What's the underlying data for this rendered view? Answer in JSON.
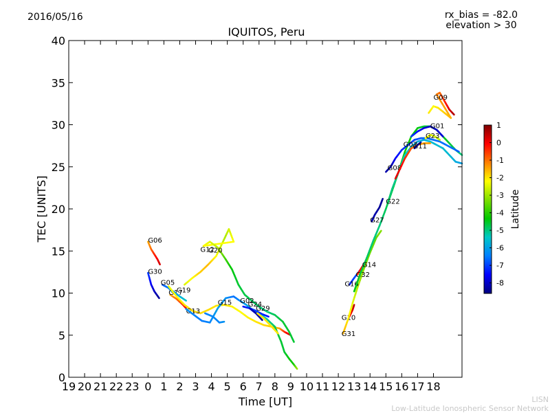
{
  "header": {
    "date": "2016/05/16",
    "title": "IQUITOS, Peru",
    "rx_bias": "rx_bias = -82.0",
    "elevation": "elevation > 30"
  },
  "credits": {
    "line1": "LISN",
    "line2": "Low-Latitude Ionospheric Sensor Network"
  },
  "chart_data": {
    "type": "scatter",
    "title": "IQUITOS, Peru",
    "xlabel": "Time [UT]",
    "ylabel": "TEC [UNITS]",
    "xlim": [
      19,
      43.8
    ],
    "ylim": [
      0,
      40
    ],
    "x_tick_values": [
      19,
      20,
      21,
      22,
      23,
      24,
      25,
      26,
      27,
      28,
      29,
      30,
      31,
      32,
      33,
      34,
      35,
      36,
      37,
      38,
      39,
      40,
      41,
      42
    ],
    "x_tick_labels": [
      "19",
      "20",
      "21",
      "22",
      "23",
      "0",
      "1",
      "2",
      "3",
      "4",
      "5",
      "6",
      "7",
      "8",
      "9",
      "10",
      "11",
      "12",
      "13",
      "14",
      "15",
      "16",
      "17",
      "18"
    ],
    "y_ticks": [
      0,
      5,
      10,
      15,
      20,
      25,
      30,
      35,
      40
    ],
    "colorbar": {
      "label": "Latitude",
      "min": -8.6,
      "max": 1.0,
      "ticks": [
        1,
        0,
        -1,
        -2,
        -3,
        -4,
        -5,
        -6,
        -7,
        -8
      ],
      "colormap": [
        "#00007f",
        "#0000ff",
        "#007fff",
        "#00c8c8",
        "#00c800",
        "#7fdf00",
        "#ffff00",
        "#ff7f00",
        "#ff0000",
        "#7f0000"
      ]
    },
    "series": [
      {
        "name": "G06",
        "label_at": [
          24.0,
          16.0
        ],
        "points": [
          [
            24.0,
            16.1,
            -1.5
          ],
          [
            24.2,
            15.2,
            -1.0
          ],
          [
            24.4,
            14.6,
            -0.4
          ],
          [
            24.6,
            14.0,
            0.0
          ],
          [
            24.75,
            13.4,
            0.3
          ]
        ]
      },
      {
        "name": "G30",
        "label_at": [
          24.0,
          12.3
        ],
        "points": [
          [
            24.0,
            12.4,
            -7.0
          ],
          [
            24.2,
            11.0,
            -7.6
          ],
          [
            24.4,
            10.2,
            -8.0
          ],
          [
            24.7,
            9.4,
            -8.4
          ]
        ]
      },
      {
        "name": "G05",
        "label_at": [
          24.8,
          11.0
        ],
        "points": [
          [
            24.9,
            11.0,
            -6.8
          ],
          [
            25.3,
            10.6,
            -6.5
          ],
          [
            25.5,
            10.2,
            -6.0
          ]
        ]
      },
      {
        "name": "G17",
        "label_at": [
          25.3,
          9.8
        ],
        "points": [
          [
            25.4,
            9.8,
            -1.5
          ],
          [
            25.8,
            9.3,
            -1.0
          ],
          [
            26.2,
            8.6,
            -0.5
          ],
          [
            26.4,
            8.2,
            0.0
          ]
        ]
      },
      {
        "name": "G19",
        "label_at": [
          25.8,
          10.1
        ],
        "points": [
          [
            25.6,
            10.2,
            -6.2
          ],
          [
            26.0,
            9.6,
            -5.8
          ],
          [
            26.4,
            9.1,
            -5.4
          ]
        ]
      },
      {
        "name": "G13",
        "label_at": [
          26.4,
          7.6
        ],
        "points": [
          [
            25.3,
            10.8,
            -2.4
          ],
          [
            25.8,
            9.6,
            -2.2
          ],
          [
            26.3,
            8.6,
            -2.0
          ],
          [
            26.8,
            7.9,
            -1.9
          ],
          [
            27.3,
            7.6,
            -1.9
          ],
          [
            27.8,
            8.0,
            -1.9
          ],
          [
            28.3,
            8.5,
            -2.0
          ],
          [
            28.8,
            8.6,
            -2.0
          ],
          [
            29.3,
            8.4,
            -2.1
          ],
          [
            29.8,
            7.8,
            -2.2
          ],
          [
            30.3,
            7.1,
            -2.1
          ],
          [
            30.8,
            6.6,
            -2.0
          ],
          [
            31.3,
            6.2,
            -1.9
          ],
          [
            31.8,
            6.0,
            -1.8
          ],
          [
            32.3,
            5.8,
            -1.5
          ],
          [
            32.6,
            5.4,
            -0.5
          ],
          [
            32.8,
            5.2,
            0.0
          ],
          [
            33.0,
            5.0,
            0.3
          ]
        ]
      },
      {
        "name": "G12",
        "label_at": [
          27.3,
          14.9
        ],
        "points": [
          [
            26.4,
            8.1,
            -6.2
          ],
          [
            26.9,
            7.4,
            -6.4
          ],
          [
            27.4,
            6.7,
            -6.5
          ],
          [
            27.9,
            6.5,
            -6.4
          ],
          [
            28.4,
            8.2,
            -6.0
          ],
          [
            28.9,
            9.4,
            -6.2
          ],
          [
            29.4,
            9.6,
            -6.6
          ],
          [
            29.7,
            9.2,
            -6.4
          ],
          [
            30.2,
            8.6,
            -6.0
          ],
          [
            30.6,
            8.0,
            -5.8
          ],
          [
            31.0,
            7.6,
            -5.6
          ],
          [
            31.5,
            6.9,
            -5.2
          ],
          [
            32.0,
            6.0,
            -4.8
          ],
          [
            32.4,
            4.2,
            -4.6
          ],
          [
            32.6,
            3.0,
            -4.6
          ],
          [
            32.9,
            2.2,
            -4.4
          ],
          [
            33.2,
            1.5,
            -4.2
          ],
          [
            33.4,
            1.0,
            -3.0
          ]
        ]
      },
      {
        "name": "G20",
        "label_at": [
          27.8,
          14.8
        ],
        "points": [
          [
            26.3,
            11.0,
            -2.5
          ],
          [
            26.8,
            11.8,
            -2.2
          ],
          [
            27.3,
            12.5,
            -1.8
          ],
          [
            27.8,
            13.4,
            -1.6
          ],
          [
            28.3,
            14.4,
            -2.2
          ],
          [
            28.6,
            15.6,
            -2.6
          ],
          [
            28.9,
            16.8,
            -2.9
          ],
          [
            29.1,
            17.6,
            -2.6
          ],
          [
            29.4,
            16.1,
            -2.2
          ],
          [
            27.5,
            15.6,
            -2.2
          ],
          [
            27.9,
            16.1,
            -2.4
          ],
          [
            28.4,
            15.4,
            -2.8
          ],
          [
            28.9,
            14.0,
            -3.8
          ],
          [
            29.3,
            12.8,
            -4.4
          ],
          [
            29.7,
            11.0,
            -4.6
          ],
          [
            30.1,
            9.8,
            -4.7
          ],
          [
            30.6,
            9.0,
            -4.8
          ],
          [
            31.0,
            8.4,
            -4.9
          ],
          [
            31.5,
            7.8,
            -5.0
          ],
          [
            32.0,
            7.4,
            -4.8
          ],
          [
            32.5,
            6.6,
            -4.6
          ],
          [
            32.9,
            5.4,
            -4.6
          ],
          [
            33.2,
            4.2,
            -4.6
          ]
        ]
      },
      {
        "name": "G15",
        "label_at": [
          28.4,
          8.6
        ],
        "points": [
          [
            27.6,
            7.6,
            -6.5
          ],
          [
            28.1,
            7.2,
            -6.3
          ],
          [
            28.5,
            6.5,
            -6.4
          ],
          [
            28.8,
            6.6,
            -6.2
          ]
        ]
      },
      {
        "name": "G02",
        "label_at": [
          29.8,
          8.8
        ],
        "points": [
          [
            30.0,
            8.4,
            -7.4
          ],
          [
            30.4,
            8.2,
            -7.2
          ],
          [
            30.8,
            7.9,
            -7.0
          ],
          [
            31.2,
            7.5,
            -7.2
          ],
          [
            31.6,
            7.2,
            -7.4
          ]
        ]
      },
      {
        "name": "G24",
        "label_at": [
          30.3,
          8.4
        ],
        "points": [
          [
            30.4,
            8.2,
            -8.0
          ],
          [
            30.8,
            7.6,
            -8.2
          ],
          [
            31.2,
            6.8,
            -8.4
          ]
        ]
      },
      {
        "name": "G29",
        "label_at": [
          30.8,
          7.9
        ],
        "points": [
          [
            30.9,
            7.6,
            -2.0
          ],
          [
            31.3,
            7.0,
            -2.0
          ],
          [
            31.8,
            6.0,
            -2.0
          ],
          [
            32.2,
            5.2,
            -2.0
          ]
        ]
      },
      {
        "name": "G10",
        "label_at": [
          36.2,
          6.8
        ],
        "points": [
          [
            36.7,
            7.2,
            -0.2
          ],
          [
            36.9,
            8.0,
            0.2
          ],
          [
            37.0,
            8.6,
            0.5
          ]
        ]
      },
      {
        "name": "G31",
        "label_at": [
          36.2,
          4.9
        ],
        "points": [
          [
            36.3,
            5.2,
            -1.5
          ],
          [
            36.6,
            6.8,
            -2.0
          ],
          [
            36.9,
            8.8,
            -2.4
          ],
          [
            37.2,
            10.6,
            -2.8
          ],
          [
            37.6,
            12.8,
            -3.2
          ],
          [
            38.0,
            14.8,
            -3.4
          ],
          [
            38.4,
            16.6,
            -3.5
          ],
          [
            38.7,
            17.4,
            -3.2
          ]
        ]
      },
      {
        "name": "G16",
        "label_at": [
          36.4,
          10.8
        ],
        "points": [
          [
            36.7,
            11.0,
            -7.2
          ],
          [
            37.0,
            11.8,
            -7.0
          ],
          [
            37.4,
            12.8,
            -6.8
          ]
        ]
      },
      {
        "name": "G32",
        "label_at": [
          37.1,
          11.9
        ],
        "points": [
          [
            37.2,
            12.2,
            -0.5
          ],
          [
            37.5,
            13.1,
            0.0
          ],
          [
            37.7,
            13.6,
            0.3
          ]
        ]
      },
      {
        "name": "G14",
        "label_at": [
          37.5,
          13.1
        ],
        "points": [
          [
            37.0,
            10.2,
            -4.4
          ],
          [
            37.4,
            12.4,
            -4.6
          ],
          [
            37.8,
            14.2,
            -4.8
          ],
          [
            38.2,
            16.2,
            -5.0
          ],
          [
            38.6,
            18.0,
            -5.0
          ],
          [
            39.0,
            20.0,
            -4.8
          ],
          [
            39.4,
            22.2,
            -4.6
          ],
          [
            39.8,
            24.4,
            -4.4
          ],
          [
            40.2,
            26.8,
            -4.2
          ],
          [
            40.6,
            28.6,
            -4.2
          ],
          [
            41.0,
            29.6,
            -4.4
          ],
          [
            41.4,
            29.8,
            -4.6
          ],
          [
            41.8,
            29.8,
            -4.6
          ],
          [
            42.2,
            29.4,
            -4.4
          ],
          [
            42.6,
            28.6,
            -4.4
          ],
          [
            43.0,
            27.8,
            -4.6
          ],
          [
            43.4,
            27.0,
            -4.8
          ],
          [
            43.8,
            26.4,
            -5.0
          ]
        ]
      },
      {
        "name": "G27",
        "label_at": [
          38.0,
          18.4
        ],
        "points": [
          [
            38.1,
            18.5,
            -8.0
          ],
          [
            38.3,
            19.3,
            -8.2
          ],
          [
            38.6,
            20.2,
            -8.4
          ],
          [
            38.8,
            21.2,
            -8.4
          ]
        ]
      },
      {
        "name": "G22",
        "label_at": [
          39.0,
          20.6
        ],
        "points": [
          [
            39.1,
            20.6,
            -4.8
          ],
          [
            39.4,
            22.4,
            -5.0
          ],
          [
            39.8,
            24.4,
            -5.2
          ],
          [
            40.2,
            26.4,
            -5.4
          ],
          [
            40.6,
            27.4,
            -5.6
          ],
          [
            41.0,
            28.0,
            -5.8
          ],
          [
            41.4,
            28.2,
            -5.8
          ],
          [
            41.8,
            28.0,
            -5.6
          ],
          [
            42.2,
            27.6,
            -5.6
          ],
          [
            42.6,
            27.2,
            -5.6
          ],
          [
            43.0,
            26.4,
            -5.6
          ],
          [
            43.4,
            25.6,
            -5.8
          ],
          [
            43.8,
            25.4,
            -6.0
          ]
        ]
      },
      {
        "name": "G08",
        "label_at": [
          39.1,
          24.6
        ],
        "points": [
          [
            39.0,
            24.4,
            -8.2
          ],
          [
            39.3,
            25.0,
            -8.4
          ],
          [
            39.6,
            26.0,
            -7.6
          ],
          [
            40.0,
            27.0,
            -7.2
          ],
          [
            40.4,
            27.6,
            -7.0
          ],
          [
            40.8,
            28.2,
            -7.0
          ],
          [
            41.2,
            28.4,
            -6.8
          ],
          [
            41.6,
            28.4,
            -6.6
          ],
          [
            42.0,
            28.2,
            -6.6
          ],
          [
            42.4,
            28.0,
            -6.6
          ],
          [
            42.8,
            27.6,
            -6.6
          ],
          [
            43.2,
            27.2,
            -6.6
          ],
          [
            43.6,
            26.8,
            -6.8
          ]
        ]
      },
      {
        "name": "G07",
        "label_at": [
          40.1,
          27.4
        ],
        "points": [
          [
            39.6,
            23.6,
            0.2
          ],
          [
            39.9,
            24.8,
            0.0
          ],
          [
            40.2,
            26.0,
            -0.4
          ],
          [
            40.6,
            27.2,
            -0.8
          ],
          [
            41.0,
            27.6,
            -1.2
          ],
          [
            41.4,
            27.8,
            -1.4
          ],
          [
            41.8,
            27.8,
            -1.4
          ]
        ]
      },
      {
        "name": "G11",
        "label_at": [
          40.7,
          27.2
        ],
        "points": [
          [
            40.8,
            27.2,
            -8.2
          ],
          [
            41.0,
            27.6,
            -8.4
          ],
          [
            41.2,
            27.9,
            -8.4
          ]
        ]
      },
      {
        "name": "G01",
        "label_at": [
          41.8,
          29.6
        ],
        "points": [
          [
            40.6,
            28.6,
            -7.0
          ],
          [
            41.0,
            29.2,
            -7.4
          ],
          [
            41.4,
            29.6,
            -7.8
          ],
          [
            41.8,
            29.8,
            -8.0
          ],
          [
            42.2,
            29.4,
            -8.0
          ],
          [
            42.6,
            28.6,
            -7.8
          ]
        ]
      },
      {
        "name": "G23",
        "label_at": [
          41.5,
          28.4
        ],
        "points": [
          [
            41.5,
            28.4,
            -2.2
          ],
          [
            41.8,
            28.8,
            -2.4
          ],
          [
            42.1,
            28.6,
            -2.6
          ],
          [
            42.4,
            28.2,
            -2.8
          ]
        ]
      },
      {
        "name": "G09",
        "label_at": [
          42.0,
          33.0
        ],
        "points": [
          [
            41.7,
            31.4,
            -2.0
          ],
          [
            42.0,
            32.2,
            -2.2
          ],
          [
            42.3,
            32.0,
            -2.0
          ],
          [
            42.7,
            31.4,
            -1.8
          ],
          [
            43.1,
            30.8,
            -1.6
          ],
          [
            42.2,
            33.6,
            -1.2
          ],
          [
            42.4,
            33.8,
            -1.0
          ],
          [
            42.7,
            32.8,
            -0.4
          ],
          [
            43.0,
            31.8,
            0.2
          ],
          [
            43.3,
            31.2,
            0.6
          ]
        ]
      }
    ]
  }
}
